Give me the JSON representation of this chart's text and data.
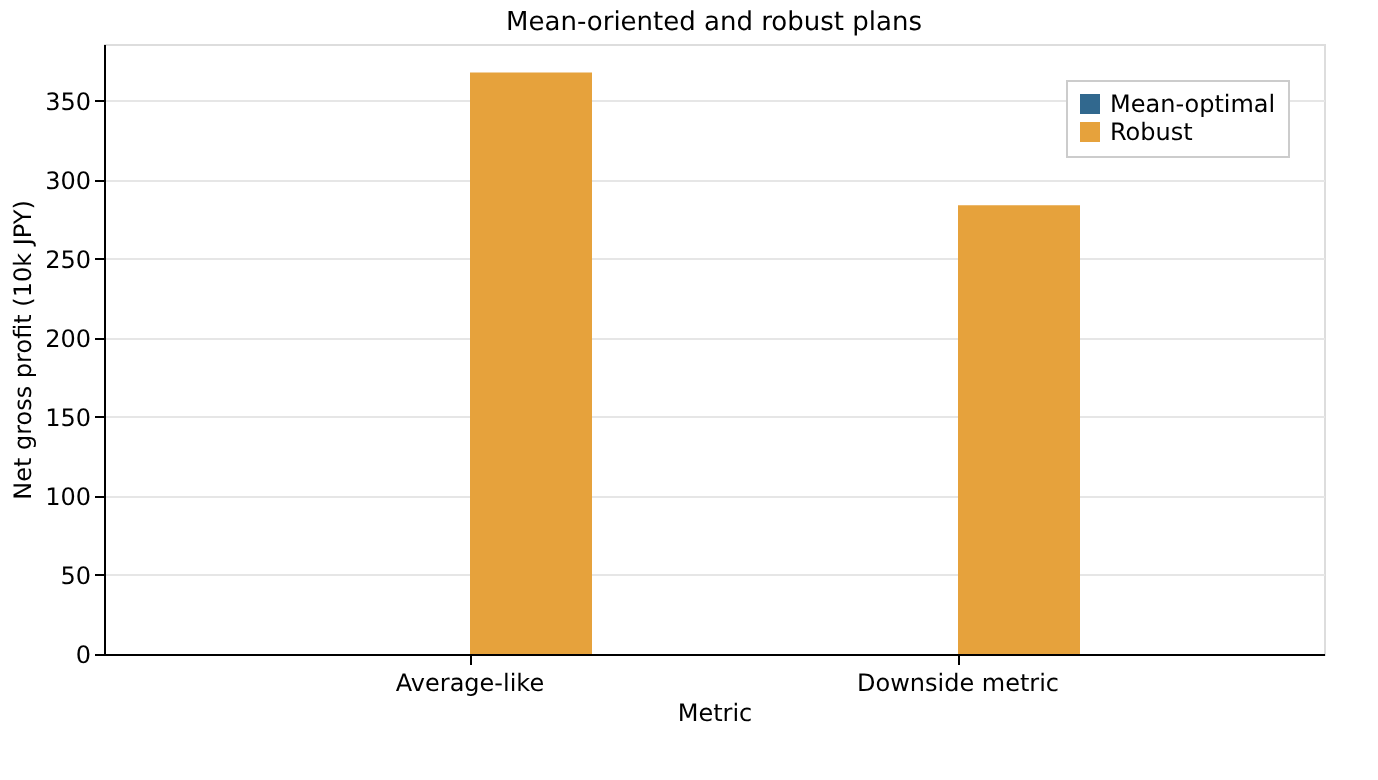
{
  "chart_data": {
    "type": "bar",
    "title": "Mean-oriented and robust plans",
    "xlabel": "Metric",
    "ylabel": "Net gross profit (10k JPY)",
    "categories": [
      "Average-like",
      "Downside metric"
    ],
    "series": [
      {
        "name": "Mean-optimal",
        "color": "#31688e",
        "values": [
          null,
          null
        ]
      },
      {
        "name": "Robust",
        "color": "#e6a23c",
        "values": [
          368,
          284
        ]
      }
    ],
    "ylim": [
      0,
      386
    ],
    "yticks": [
      0,
      50,
      100,
      150,
      200,
      250,
      300,
      350
    ],
    "grid": "y",
    "legend": "top right"
  }
}
